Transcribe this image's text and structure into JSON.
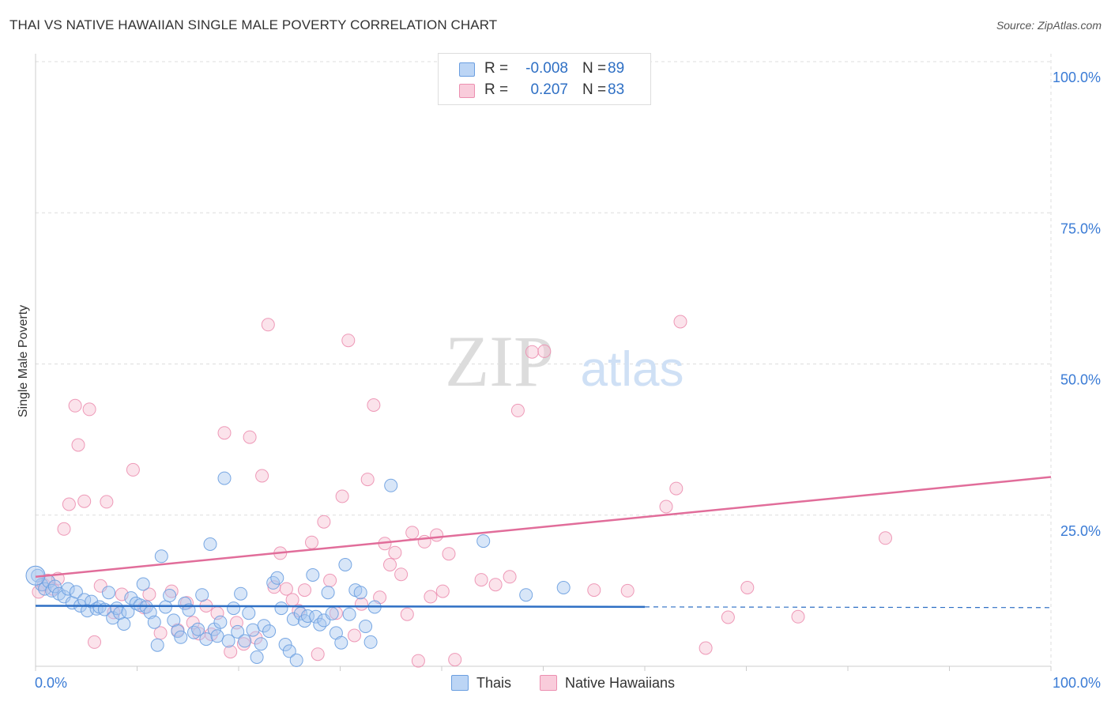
{
  "title": "THAI VS NATIVE HAWAIIAN SINGLE MALE POVERTY CORRELATION CHART",
  "source": "Source: ZipAtlas.com",
  "watermark": {
    "zip": "ZIP",
    "atlas": "atlas"
  },
  "stats": {
    "thai": {
      "r_label": "R =",
      "r_value": "-0.008",
      "n_label": "N =",
      "n_value": "89"
    },
    "hawaiian": {
      "r_label": "R =",
      "r_value": "0.207",
      "n_label": "N =",
      "n_value": "83"
    }
  },
  "legend": {
    "thai": "Thais",
    "hawaiian": "Native Hawaiians"
  },
  "colors": {
    "thai_fill": "#a9c8f0",
    "thai_stroke": "#6a9ee0",
    "thai_line": "#2e6fc4",
    "hawaiian_fill": "#f7c1d2",
    "hawaiian_stroke": "#ec8fb0",
    "hawaiian_line": "#e16d9a",
    "axis_text": "#3a7bd5",
    "grid": "#dddddd"
  },
  "chart_data": {
    "type": "scatter",
    "title": "THAI VS NATIVE HAWAIIAN SINGLE MALE POVERTY CORRELATION CHART",
    "xlabel": "",
    "ylabel": "Single Male Poverty",
    "xlim": [
      0,
      100
    ],
    "ylim": [
      0,
      100
    ],
    "x_tick_labels": [
      "0.0%",
      "100.0%"
    ],
    "y_tick_labels": [
      "25.0%",
      "50.0%",
      "75.0%",
      "100.0%"
    ],
    "y_ticks": [
      25,
      50,
      75,
      100
    ],
    "grid": true,
    "legend_position": "bottom",
    "series": [
      {
        "name": "Thais",
        "r": -0.008,
        "n": 89,
        "trend": {
          "x_solid": [
            0,
            60
          ],
          "x_dashed": [
            60,
            100
          ],
          "y_start": 10.0,
          "y_end": 9.7
        },
        "points": [
          [
            0.2,
            15.0
          ],
          [
            0.6,
            13.5
          ],
          [
            0.9,
            12.8
          ],
          [
            1.3,
            14.0
          ],
          [
            1.6,
            12.5
          ],
          [
            1.9,
            13.2
          ],
          [
            2.3,
            12.0
          ],
          [
            2.8,
            11.5
          ],
          [
            3.2,
            12.8
          ],
          [
            3.6,
            10.5
          ],
          [
            4.0,
            12.3
          ],
          [
            4.4,
            10.0
          ],
          [
            4.8,
            11.0
          ],
          [
            5.1,
            9.2
          ],
          [
            5.5,
            10.7
          ],
          [
            6.0,
            9.5
          ],
          [
            6.3,
            9.8
          ],
          [
            6.8,
            9.4
          ],
          [
            7.2,
            12.2
          ],
          [
            7.6,
            8.0
          ],
          [
            8.0,
            9.6
          ],
          [
            8.3,
            8.8
          ],
          [
            8.7,
            7.0
          ],
          [
            9.1,
            9.0
          ],
          [
            9.4,
            11.3
          ],
          [
            9.9,
            10.4
          ],
          [
            10.3,
            10.1
          ],
          [
            10.6,
            13.6
          ],
          [
            10.9,
            9.8
          ],
          [
            11.3,
            8.9
          ],
          [
            11.7,
            7.3
          ],
          [
            12.0,
            3.5
          ],
          [
            12.4,
            18.2
          ],
          [
            12.8,
            9.8
          ],
          [
            13.2,
            11.7
          ],
          [
            13.6,
            7.6
          ],
          [
            14.0,
            5.8
          ],
          [
            14.3,
            4.8
          ],
          [
            14.7,
            10.4
          ],
          [
            15.1,
            9.3
          ],
          [
            15.6,
            5.6
          ],
          [
            16.0,
            6.1
          ],
          [
            16.4,
            11.8
          ],
          [
            16.8,
            4.5
          ],
          [
            17.2,
            20.2
          ],
          [
            17.6,
            6.1
          ],
          [
            17.9,
            5.0
          ],
          [
            18.2,
            7.3
          ],
          [
            18.6,
            31.1
          ],
          [
            19.0,
            4.2
          ],
          [
            19.5,
            9.6
          ],
          [
            19.9,
            5.7
          ],
          [
            20.2,
            12.0
          ],
          [
            20.6,
            4.2
          ],
          [
            21.0,
            8.8
          ],
          [
            21.4,
            6.0
          ],
          [
            21.8,
            1.5
          ],
          [
            22.2,
            3.7
          ],
          [
            22.5,
            6.7
          ],
          [
            23.0,
            5.8
          ],
          [
            23.4,
            13.8
          ],
          [
            23.8,
            14.6
          ],
          [
            24.2,
            9.6
          ],
          [
            24.6,
            3.6
          ],
          [
            25.0,
            2.5
          ],
          [
            25.4,
            7.8
          ],
          [
            25.7,
            1.0
          ],
          [
            26.1,
            8.7
          ],
          [
            26.5,
            7.5
          ],
          [
            26.8,
            8.3
          ],
          [
            27.3,
            15.1
          ],
          [
            27.6,
            8.2
          ],
          [
            28.0,
            6.9
          ],
          [
            28.4,
            7.6
          ],
          [
            28.8,
            12.2
          ],
          [
            29.2,
            8.7
          ],
          [
            29.6,
            5.5
          ],
          [
            30.1,
            3.9
          ],
          [
            30.5,
            16.8
          ],
          [
            30.9,
            8.6
          ],
          [
            31.5,
            12.6
          ],
          [
            32.0,
            12.2
          ],
          [
            32.5,
            6.6
          ],
          [
            33.0,
            4.0
          ],
          [
            33.4,
            9.8
          ],
          [
            35.0,
            29.9
          ],
          [
            44.1,
            20.7
          ],
          [
            48.3,
            11.8
          ],
          [
            52.0,
            13.0
          ]
        ]
      },
      {
        "name": "Native Hawaiians",
        "r": 0.207,
        "n": 83,
        "trend": {
          "x_solid": [
            0,
            100
          ],
          "y_start": 14.8,
          "y_end": 31.3
        },
        "points": [
          [
            0.3,
            12.3
          ],
          [
            0.8,
            13.5
          ],
          [
            1.2,
            14.2
          ],
          [
            1.7,
            12.8
          ],
          [
            2.2,
            14.5
          ],
          [
            2.8,
            22.7
          ],
          [
            3.3,
            26.8
          ],
          [
            3.9,
            43.1
          ],
          [
            4.2,
            36.6
          ],
          [
            4.8,
            27.3
          ],
          [
            5.3,
            42.5
          ],
          [
            5.8,
            4.0
          ],
          [
            6.4,
            13.3
          ],
          [
            7.0,
            27.2
          ],
          [
            7.7,
            8.9
          ],
          [
            8.5,
            11.9
          ],
          [
            9.6,
            32.5
          ],
          [
            10.7,
            9.7
          ],
          [
            11.2,
            11.9
          ],
          [
            12.3,
            5.5
          ],
          [
            13.4,
            12.4
          ],
          [
            14.0,
            6.0
          ],
          [
            14.9,
            10.5
          ],
          [
            15.5,
            7.2
          ],
          [
            16.1,
            5.4
          ],
          [
            16.8,
            10.0
          ],
          [
            17.3,
            5.3
          ],
          [
            17.9,
            8.8
          ],
          [
            18.6,
            38.6
          ],
          [
            19.2,
            2.4
          ],
          [
            19.8,
            7.2
          ],
          [
            20.5,
            3.7
          ],
          [
            21.1,
            37.9
          ],
          [
            21.7,
            4.7
          ],
          [
            22.3,
            31.5
          ],
          [
            22.9,
            56.5
          ],
          [
            23.5,
            13.1
          ],
          [
            24.1,
            18.7
          ],
          [
            24.7,
            12.8
          ],
          [
            25.3,
            11.0
          ],
          [
            25.9,
            9.2
          ],
          [
            26.5,
            12.6
          ],
          [
            27.2,
            20.5
          ],
          [
            27.8,
            2.0
          ],
          [
            28.4,
            23.9
          ],
          [
            29.0,
            14.2
          ],
          [
            29.6,
            8.8
          ],
          [
            30.2,
            28.1
          ],
          [
            30.8,
            53.9
          ],
          [
            31.4,
            5.1
          ],
          [
            32.1,
            10.3
          ],
          [
            32.7,
            30.9
          ],
          [
            33.3,
            43.2
          ],
          [
            33.9,
            11.4
          ],
          [
            34.4,
            20.3
          ],
          [
            34.9,
            16.8
          ],
          [
            35.4,
            18.8
          ],
          [
            36.0,
            15.2
          ],
          [
            36.6,
            8.6
          ],
          [
            37.1,
            22.1
          ],
          [
            37.7,
            0.9
          ],
          [
            38.3,
            20.6
          ],
          [
            38.9,
            11.5
          ],
          [
            39.5,
            21.7
          ],
          [
            40.1,
            12.4
          ],
          [
            40.7,
            18.6
          ],
          [
            41.3,
            1.1
          ],
          [
            43.9,
            14.3
          ],
          [
            45.3,
            13.5
          ],
          [
            46.7,
            14.8
          ],
          [
            47.5,
            42.3
          ],
          [
            48.9,
            52.0
          ],
          [
            50.1,
            52.1
          ],
          [
            55.0,
            12.6
          ],
          [
            58.3,
            12.5
          ],
          [
            62.1,
            26.4
          ],
          [
            63.5,
            57.0
          ],
          [
            63.1,
            29.4
          ],
          [
            66.0,
            3.0
          ],
          [
            68.2,
            8.1
          ],
          [
            70.1,
            13.0
          ],
          [
            75.1,
            8.2
          ],
          [
            83.7,
            21.2
          ]
        ]
      }
    ]
  }
}
